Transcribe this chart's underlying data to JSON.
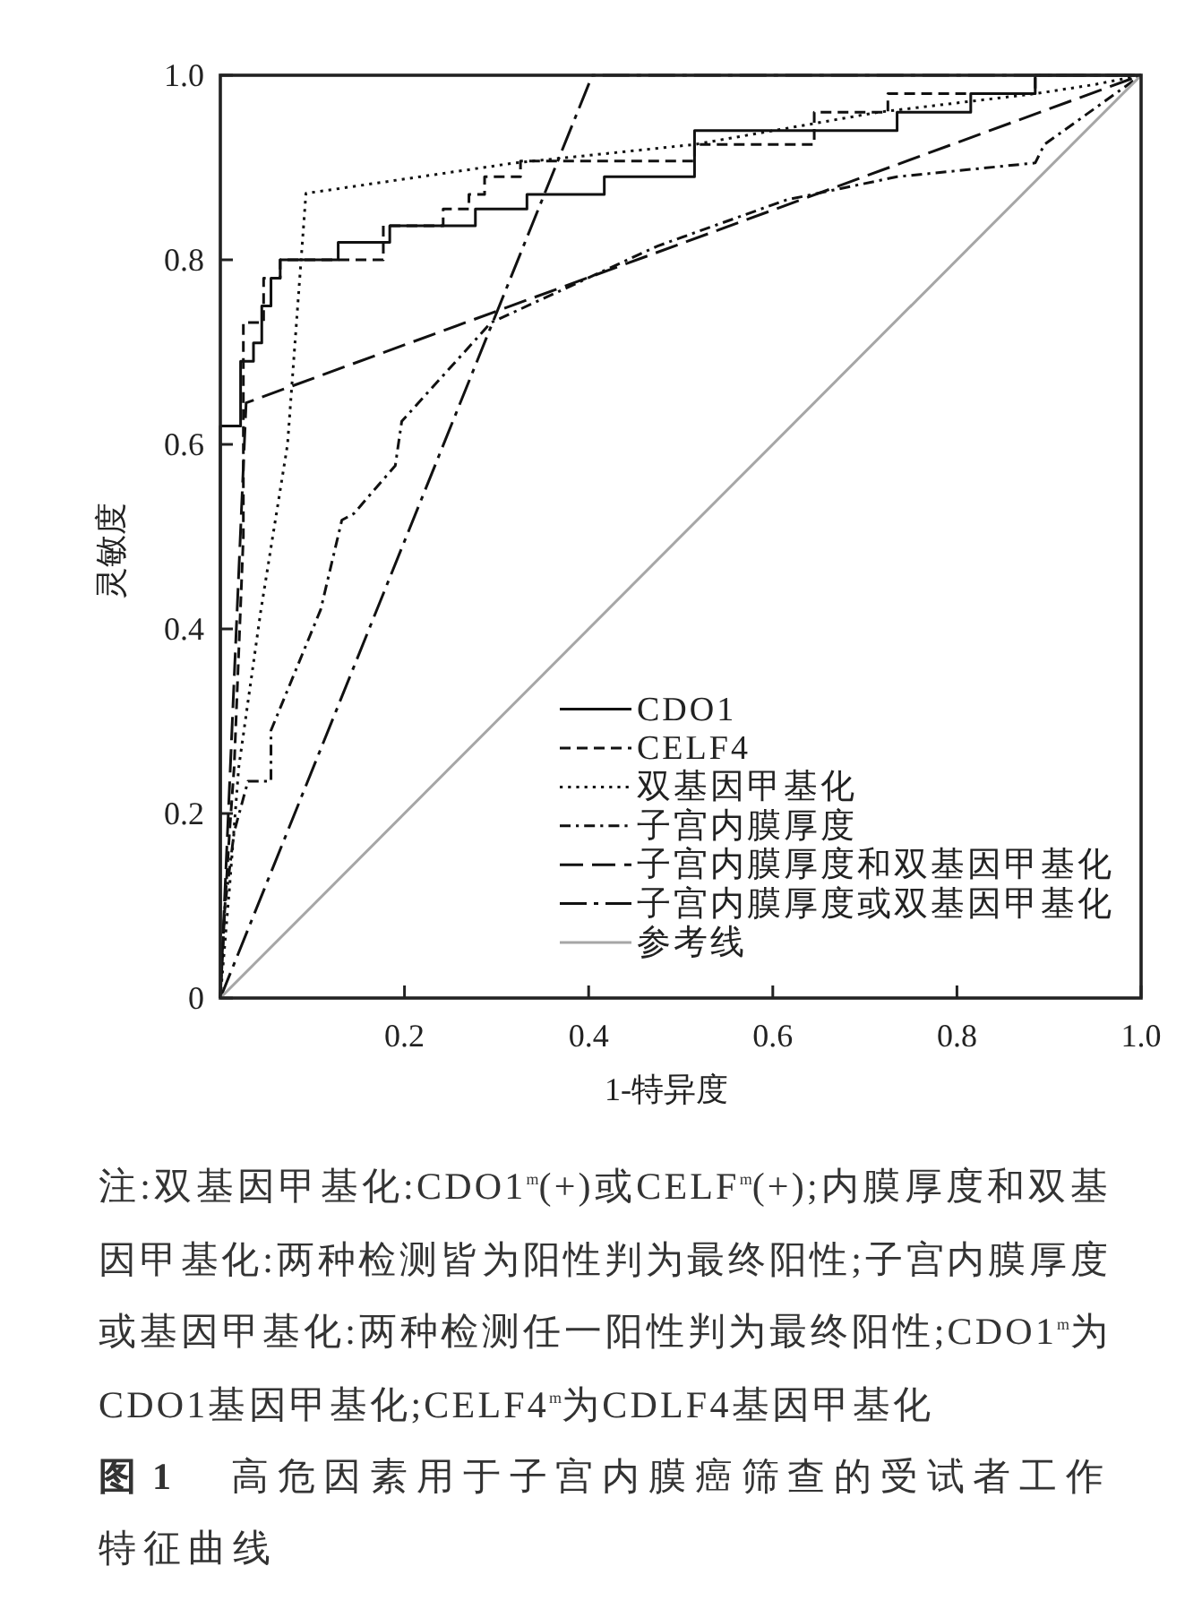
{
  "chart_data": {
    "type": "line",
    "xlabel": "1-特异度",
    "ylabel": "灵敏度",
    "xlim": [
      0,
      1
    ],
    "ylim": [
      0,
      1
    ],
    "xticks": [
      0.2,
      0.4,
      0.6,
      0.8,
      {
        "value": 1,
        "label": "1.0"
      }
    ],
    "yticks": [
      0,
      0.2,
      0.4,
      0.6,
      0.8,
      {
        "value": 1,
        "label": "1.0"
      }
    ],
    "legend": "bottom right",
    "series": [
      {
        "name": "CDO1",
        "color": "#111111",
        "line_style": "solid",
        "x": [
          0,
          0,
          0.022,
          0.022,
          0.036,
          0.036,
          0.045,
          0.045,
          0.055,
          0.055,
          0.065,
          0.065,
          0.08,
          0.08,
          0.128,
          0.128,
          0.184,
          0.184,
          0.277,
          0.277,
          0.333,
          0.333,
          0.417,
          0.417,
          0.515,
          0.515,
          0.735,
          0.735,
          0.815,
          0.815,
          0.885,
          0.885,
          1
        ],
        "values": [
          0,
          0.62,
          0.62,
          0.69,
          0.69,
          0.71,
          0.71,
          0.75,
          0.75,
          0.78,
          0.78,
          0.8,
          0.8,
          0.8,
          0.8,
          0.819,
          0.819,
          0.837,
          0.837,
          0.855,
          0.855,
          0.871,
          0.871,
          0.89,
          0.89,
          0.94,
          0.94,
          0.96,
          0.96,
          0.98,
          0.98,
          1,
          1
        ]
      },
      {
        "name": "CELF4",
        "color": "#111111",
        "line_style": "dashed",
        "x": [
          0,
          0.005,
          0.01,
          0.015,
          0.025,
          0.025,
          0.047,
          0.047,
          0.065,
          0.065,
          0.177,
          0.177,
          0.242,
          0.242,
          0.27,
          0.27,
          0.287,
          0.287,
          0.326,
          0.326,
          0.515,
          0.515,
          0.645,
          0.645,
          0.725,
          0.725,
          0.885,
          0.885,
          1
        ],
        "values": [
          0,
          0.1,
          0.18,
          0.25,
          0.5,
          0.732,
          0.732,
          0.78,
          0.78,
          0.8,
          0.8,
          0.837,
          0.837,
          0.855,
          0.855,
          0.871,
          0.871,
          0.89,
          0.89,
          0.907,
          0.907,
          0.925,
          0.925,
          0.96,
          0.96,
          0.98,
          0.98,
          1,
          1
        ]
      },
      {
        "name": "双基因甲基化",
        "color": "#111111",
        "line_style": "dotted",
        "x": [
          0,
          0.01,
          0.02,
          0.044,
          0.073,
          0.093,
          0.32,
          0.515,
          0.715,
          0.885,
          0.95,
          1
        ],
        "values": [
          0,
          0.12,
          0.25,
          0.42,
          0.6,
          0.872,
          0.905,
          0.925,
          0.96,
          0.98,
          0.99,
          1
        ]
      },
      {
        "name": "子宫内膜厚度",
        "color": "#111111",
        "line_style": "dashdot",
        "x": [
          0,
          0.005,
          0.015,
          0.03,
          0.055,
          0.055,
          0.109,
          0.132,
          0.145,
          0.19,
          0.197,
          0.294,
          0.475,
          0.615,
          0.735,
          0.885,
          0.895,
          1
        ],
        "values": [
          0,
          0.1,
          0.18,
          0.235,
          0.235,
          0.29,
          0.421,
          0.518,
          0.525,
          0.577,
          0.625,
          0.732,
          0.815,
          0.865,
          0.89,
          0.905,
          0.925,
          1
        ]
      },
      {
        "name": "子宫内膜厚度和双基因甲基化",
        "color": "#111111",
        "line_style": "longdash",
        "x": [
          0,
          0.028,
          1
        ],
        "values": [
          0,
          0.645,
          1
        ]
      },
      {
        "name": "子宫内膜厚度或双基因甲基化",
        "color": "#111111",
        "line_style": "longdashdot",
        "x": [
          0,
          0.404,
          1
        ],
        "values": [
          0,
          1,
          1
        ]
      },
      {
        "name": "参考线",
        "color": "#a6a6a6",
        "line_style": "solid",
        "x": [
          0,
          1
        ],
        "values": [
          0,
          1
        ]
      }
    ],
    "annotations": [
      "注:双基因甲基化:CDO1$^{m}$(+)或CELF$^{m}$(+);内膜厚度和双基因甲基化:两种检测皆为阳性判为最终阳性;子宫内膜厚度或基因甲基化:两种检测任一阳性判为最终阳性;CDO1$^{m}$为CDO1基因甲基化;CELF4$^{m}$为CDLF4基因甲基化",
      "图 1",
      "高危因素用于子宫内膜癌筛查的受试者工作特征曲线"
    ]
  }
}
